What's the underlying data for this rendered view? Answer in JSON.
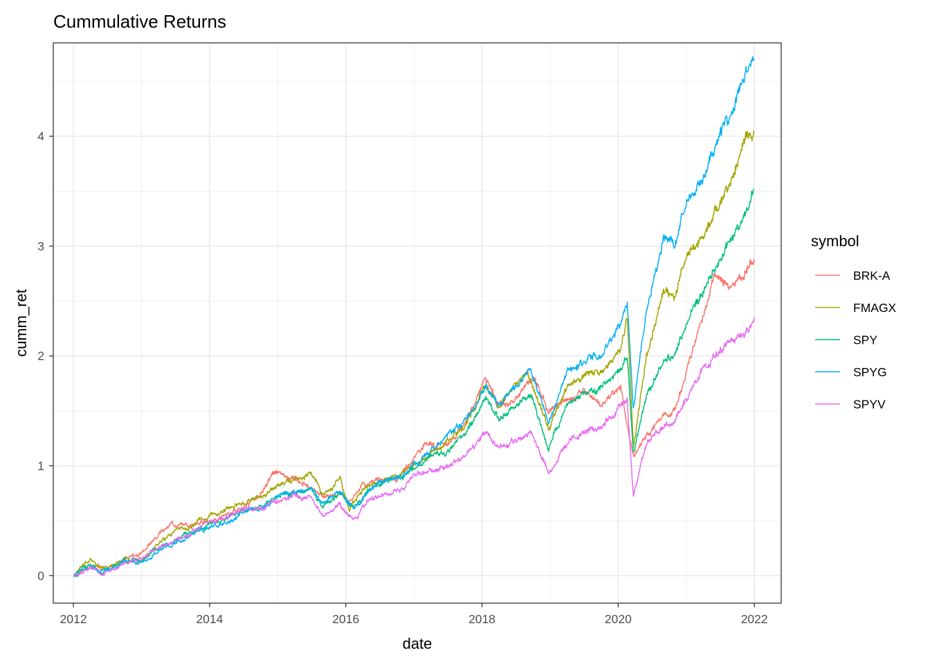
{
  "chart_data": {
    "type": "line",
    "title": "Cummulative Returns",
    "xlabel": "date",
    "ylabel": "cumm_ret",
    "x_ticks": [
      "2012",
      "2014",
      "2016",
      "2018",
      "2020",
      "2022"
    ],
    "y_ticks": [
      "0",
      "1",
      "2",
      "3",
      "4"
    ],
    "xlim": [
      "2011-09-15",
      "2022-05-25"
    ],
    "ylim": [
      -0.25,
      4.85
    ],
    "grid": true,
    "legend": {
      "title": "symbol",
      "position": "right"
    },
    "series": [
      {
        "name": "BRK-A",
        "color": "#F8766D",
        "points": [
          [
            "2012-01-03",
            0.0
          ],
          [
            "2012-04-01",
            0.08
          ],
          [
            "2012-07-01",
            0.07
          ],
          [
            "2012-10-01",
            0.15
          ],
          [
            "2013-01-02",
            0.2
          ],
          [
            "2013-04-01",
            0.38
          ],
          [
            "2013-06-01",
            0.48
          ],
          [
            "2013-09-01",
            0.46
          ],
          [
            "2014-01-02",
            0.5
          ],
          [
            "2014-04-01",
            0.55
          ],
          [
            "2014-07-01",
            0.62
          ],
          [
            "2014-10-01",
            0.75
          ],
          [
            "2014-12-15",
            0.95
          ],
          [
            "2015-03-01",
            0.9
          ],
          [
            "2015-06-01",
            0.82
          ],
          [
            "2015-09-01",
            0.72
          ],
          [
            "2015-12-01",
            0.75
          ],
          [
            "2016-01-20",
            0.65
          ],
          [
            "2016-04-01",
            0.82
          ],
          [
            "2016-07-01",
            0.86
          ],
          [
            "2016-10-01",
            0.88
          ],
          [
            "2016-12-01",
            1.0
          ],
          [
            "2017-03-01",
            1.2
          ],
          [
            "2017-06-01",
            1.18
          ],
          [
            "2017-09-01",
            1.3
          ],
          [
            "2018-01-20",
            1.78
          ],
          [
            "2018-04-01",
            1.55
          ],
          [
            "2018-07-01",
            1.6
          ],
          [
            "2018-10-01",
            1.82
          ],
          [
            "2018-12-24",
            1.5
          ],
          [
            "2019-04-01",
            1.6
          ],
          [
            "2019-07-01",
            1.68
          ],
          [
            "2019-10-01",
            1.55
          ],
          [
            "2020-01-15",
            1.72
          ],
          [
            "2020-03-23",
            1.05
          ],
          [
            "2020-06-01",
            1.3
          ],
          [
            "2020-09-01",
            1.45
          ],
          [
            "2020-11-01",
            1.5
          ],
          [
            "2021-01-01",
            1.85
          ],
          [
            "2021-04-01",
            2.35
          ],
          [
            "2021-06-01",
            2.75
          ],
          [
            "2021-09-01",
            2.62
          ],
          [
            "2021-12-31",
            2.88
          ]
        ]
      },
      {
        "name": "FMAGX",
        "color": "#A3A500",
        "points": [
          [
            "2012-01-03",
            0.0
          ],
          [
            "2012-04-01",
            0.14
          ],
          [
            "2012-07-01",
            0.05
          ],
          [
            "2012-10-01",
            0.18
          ],
          [
            "2013-01-02",
            0.12
          ],
          [
            "2013-04-01",
            0.3
          ],
          [
            "2013-07-01",
            0.42
          ],
          [
            "2013-10-01",
            0.46
          ],
          [
            "2014-01-02",
            0.55
          ],
          [
            "2014-04-01",
            0.6
          ],
          [
            "2014-07-01",
            0.66
          ],
          [
            "2014-10-01",
            0.72
          ],
          [
            "2015-01-01",
            0.82
          ],
          [
            "2015-04-01",
            0.88
          ],
          [
            "2015-07-01",
            0.92
          ],
          [
            "2015-09-01",
            0.72
          ],
          [
            "2015-12-01",
            0.9
          ],
          [
            "2016-01-20",
            0.62
          ],
          [
            "2016-04-01",
            0.78
          ],
          [
            "2016-07-01",
            0.85
          ],
          [
            "2016-10-01",
            0.92
          ],
          [
            "2017-01-01",
            1.0
          ],
          [
            "2017-04-01",
            1.1
          ],
          [
            "2017-07-01",
            1.22
          ],
          [
            "2017-10-01",
            1.35
          ],
          [
            "2018-01-20",
            1.72
          ],
          [
            "2018-04-01",
            1.55
          ],
          [
            "2018-07-01",
            1.75
          ],
          [
            "2018-09-01",
            1.85
          ],
          [
            "2018-12-24",
            1.35
          ],
          [
            "2019-04-01",
            1.72
          ],
          [
            "2019-07-01",
            1.82
          ],
          [
            "2019-10-01",
            1.85
          ],
          [
            "2020-01-15",
            2.05
          ],
          [
            "2020-02-19",
            2.35
          ],
          [
            "2020-03-23",
            1.2
          ],
          [
            "2020-06-01",
            2.0
          ],
          [
            "2020-09-01",
            2.6
          ],
          [
            "2020-11-01",
            2.55
          ],
          [
            "2021-01-01",
            2.9
          ],
          [
            "2021-04-01",
            3.1
          ],
          [
            "2021-07-01",
            3.4
          ],
          [
            "2021-09-01",
            3.6
          ],
          [
            "2021-11-15",
            4.02
          ],
          [
            "2021-12-31",
            4.05
          ]
        ]
      },
      {
        "name": "SPY",
        "color": "#00BF7D",
        "points": [
          [
            "2012-01-03",
            0.0
          ],
          [
            "2012-04-01",
            0.1
          ],
          [
            "2012-06-01",
            0.02
          ],
          [
            "2012-10-01",
            0.14
          ],
          [
            "2013-01-02",
            0.14
          ],
          [
            "2013-04-01",
            0.25
          ],
          [
            "2013-07-01",
            0.33
          ],
          [
            "2013-10-01",
            0.4
          ],
          [
            "2014-01-02",
            0.48
          ],
          [
            "2014-04-01",
            0.52
          ],
          [
            "2014-07-01",
            0.6
          ],
          [
            "2014-10-01",
            0.62
          ],
          [
            "2015-01-01",
            0.72
          ],
          [
            "2015-04-01",
            0.76
          ],
          [
            "2015-07-01",
            0.78
          ],
          [
            "2015-09-01",
            0.62
          ],
          [
            "2015-12-01",
            0.75
          ],
          [
            "2016-02-11",
            0.6
          ],
          [
            "2016-05-01",
            0.78
          ],
          [
            "2016-08-01",
            0.86
          ],
          [
            "2016-11-01",
            0.88
          ],
          [
            "2017-01-01",
            0.98
          ],
          [
            "2017-04-01",
            1.08
          ],
          [
            "2017-07-01",
            1.15
          ],
          [
            "2017-10-01",
            1.28
          ],
          [
            "2018-01-26",
            1.62
          ],
          [
            "2018-04-01",
            1.42
          ],
          [
            "2018-07-01",
            1.55
          ],
          [
            "2018-09-20",
            1.65
          ],
          [
            "2018-12-24",
            1.15
          ],
          [
            "2019-04-01",
            1.55
          ],
          [
            "2019-07-01",
            1.65
          ],
          [
            "2019-10-01",
            1.7
          ],
          [
            "2020-01-15",
            1.88
          ],
          [
            "2020-02-19",
            2.0
          ],
          [
            "2020-03-23",
            1.12
          ],
          [
            "2020-06-01",
            1.65
          ],
          [
            "2020-09-01",
            1.95
          ],
          [
            "2020-11-01",
            2.0
          ],
          [
            "2021-01-01",
            2.3
          ],
          [
            "2021-04-01",
            2.6
          ],
          [
            "2021-07-01",
            2.9
          ],
          [
            "2021-09-01",
            3.08
          ],
          [
            "2021-11-15",
            3.3
          ],
          [
            "2021-12-31",
            3.52
          ]
        ]
      },
      {
        "name": "SPYG",
        "color": "#00B0F6",
        "points": [
          [
            "2012-01-03",
            0.0
          ],
          [
            "2012-04-01",
            0.1
          ],
          [
            "2012-06-01",
            0.03
          ],
          [
            "2012-10-01",
            0.12
          ],
          [
            "2013-01-02",
            0.12
          ],
          [
            "2013-04-01",
            0.22
          ],
          [
            "2013-07-01",
            0.3
          ],
          [
            "2013-10-01",
            0.38
          ],
          [
            "2014-01-02",
            0.45
          ],
          [
            "2014-04-01",
            0.48
          ],
          [
            "2014-07-01",
            0.58
          ],
          [
            "2014-10-01",
            0.62
          ],
          [
            "2015-01-01",
            0.72
          ],
          [
            "2015-04-01",
            0.76
          ],
          [
            "2015-07-01",
            0.8
          ],
          [
            "2015-09-01",
            0.64
          ],
          [
            "2015-12-01",
            0.78
          ],
          [
            "2016-02-11",
            0.6
          ],
          [
            "2016-05-01",
            0.78
          ],
          [
            "2016-08-01",
            0.88
          ],
          [
            "2016-11-01",
            0.9
          ],
          [
            "2017-01-01",
            1.0
          ],
          [
            "2017-04-01",
            1.15
          ],
          [
            "2017-07-01",
            1.28
          ],
          [
            "2017-10-01",
            1.42
          ],
          [
            "2018-01-26",
            1.7
          ],
          [
            "2018-04-01",
            1.55
          ],
          [
            "2018-07-01",
            1.72
          ],
          [
            "2018-09-20",
            1.88
          ],
          [
            "2018-12-24",
            1.4
          ],
          [
            "2019-04-01",
            1.85
          ],
          [
            "2019-07-01",
            1.95
          ],
          [
            "2019-10-01",
            2.0
          ],
          [
            "2020-01-15",
            2.28
          ],
          [
            "2020-02-19",
            2.48
          ],
          [
            "2020-03-23",
            1.5
          ],
          [
            "2020-06-01",
            2.4
          ],
          [
            "2020-09-01",
            3.1
          ],
          [
            "2020-11-01",
            3.0
          ],
          [
            "2021-01-01",
            3.4
          ],
          [
            "2021-04-01",
            3.6
          ],
          [
            "2021-07-01",
            4.05
          ],
          [
            "2021-09-01",
            4.2
          ],
          [
            "2021-11-15",
            4.6
          ],
          [
            "2021-12-31",
            4.7
          ]
        ]
      },
      {
        "name": "SPYV",
        "color": "#E76BF3",
        "points": [
          [
            "2012-01-03",
            0.0
          ],
          [
            "2012-04-01",
            0.08
          ],
          [
            "2012-06-01",
            0.0
          ],
          [
            "2012-10-01",
            0.12
          ],
          [
            "2013-01-02",
            0.14
          ],
          [
            "2013-04-01",
            0.25
          ],
          [
            "2013-07-01",
            0.33
          ],
          [
            "2013-10-01",
            0.4
          ],
          [
            "2014-01-02",
            0.48
          ],
          [
            "2014-04-01",
            0.54
          ],
          [
            "2014-07-01",
            0.6
          ],
          [
            "2014-10-01",
            0.62
          ],
          [
            "2015-01-01",
            0.68
          ],
          [
            "2015-04-01",
            0.72
          ],
          [
            "2015-07-01",
            0.72
          ],
          [
            "2015-09-01",
            0.55
          ],
          [
            "2015-12-01",
            0.66
          ],
          [
            "2016-02-11",
            0.5
          ],
          [
            "2016-05-01",
            0.68
          ],
          [
            "2016-08-01",
            0.75
          ],
          [
            "2016-11-01",
            0.78
          ],
          [
            "2017-01-01",
            0.92
          ],
          [
            "2017-04-01",
            0.95
          ],
          [
            "2017-07-01",
            1.0
          ],
          [
            "2017-10-01",
            1.08
          ],
          [
            "2018-01-26",
            1.3
          ],
          [
            "2018-04-01",
            1.15
          ],
          [
            "2018-07-01",
            1.22
          ],
          [
            "2018-09-20",
            1.32
          ],
          [
            "2018-12-24",
            0.92
          ],
          [
            "2019-04-01",
            1.22
          ],
          [
            "2019-07-01",
            1.3
          ],
          [
            "2019-10-01",
            1.35
          ],
          [
            "2020-01-15",
            1.55
          ],
          [
            "2020-02-19",
            1.6
          ],
          [
            "2020-03-23",
            0.72
          ],
          [
            "2020-06-01",
            1.2
          ],
          [
            "2020-09-01",
            1.35
          ],
          [
            "2020-11-01",
            1.4
          ],
          [
            "2021-01-01",
            1.62
          ],
          [
            "2021-04-01",
            1.9
          ],
          [
            "2021-07-01",
            2.05
          ],
          [
            "2021-09-01",
            2.15
          ],
          [
            "2021-11-15",
            2.2
          ],
          [
            "2021-12-31",
            2.35
          ]
        ]
      }
    ]
  }
}
